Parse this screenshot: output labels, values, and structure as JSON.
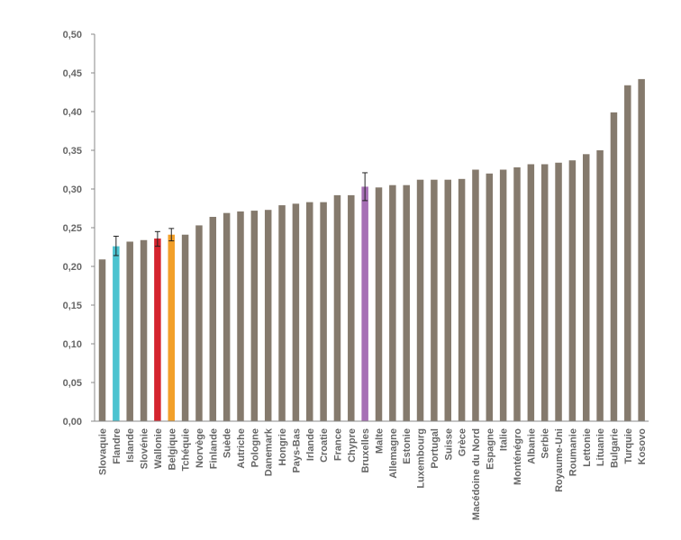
{
  "chart_data": {
    "type": "bar",
    "title": "",
    "xlabel": "",
    "ylabel": "",
    "ylim": [
      0,
      0.5
    ],
    "yticks": [
      "0,00",
      "0,05",
      "0,10",
      "0,15",
      "0,20",
      "0,25",
      "0,30",
      "0,35",
      "0,40",
      "0,45",
      "0,50"
    ],
    "grid": false,
    "default_color": "#857a6d",
    "categories": [
      "Slovaquie",
      "Flandre",
      "Islande",
      "Slovénie",
      "Wallonie",
      "Belgique",
      "Tchéquie",
      "Norvège",
      "Finlande",
      "Suède",
      "Autriche",
      "Pologne",
      "Danemark",
      "Hongrie",
      "Pays-Bas",
      "Irlande",
      "Croatie",
      "France",
      "Chypre",
      "Bruxelles",
      "Malte",
      "Allemagne",
      "Estonie",
      "Luxembourg",
      "Portugal",
      "Suisse",
      "Grèce",
      "Macédoine du Nord",
      "Espagne",
      "Italie",
      "Monténégro",
      "Albanie",
      "Serbie",
      "Royaume-Uni",
      "Roumanie",
      "Lettonie",
      "Lituanie",
      "Bulgarie",
      "Turquie",
      "Kosovo"
    ],
    "values": [
      0.209,
      0.226,
      0.232,
      0.234,
      0.236,
      0.241,
      0.241,
      0.253,
      0.264,
      0.269,
      0.271,
      0.272,
      0.273,
      0.279,
      0.281,
      0.283,
      0.283,
      0.292,
      0.292,
      0.303,
      0.302,
      0.305,
      0.305,
      0.312,
      0.312,
      0.312,
      0.313,
      0.325,
      0.32,
      0.325,
      0.328,
      0.332,
      0.332,
      0.334,
      0.337,
      0.345,
      0.35,
      0.399,
      0.434,
      0.442
    ],
    "highlights": {
      "Flandre": "#4cc3d0",
      "Wallonie": "#d4242e",
      "Belgique": "#f2a02a",
      "Bruxelles": "#a670b5"
    },
    "error_bars": [
      {
        "category": "Flandre",
        "low": 0.214,
        "high": 0.239
      },
      {
        "category": "Wallonie",
        "low": 0.226,
        "high": 0.245
      },
      {
        "category": "Belgique",
        "low": 0.233,
        "high": 0.249
      },
      {
        "category": "Bruxelles",
        "low": 0.285,
        "high": 0.321
      }
    ]
  }
}
